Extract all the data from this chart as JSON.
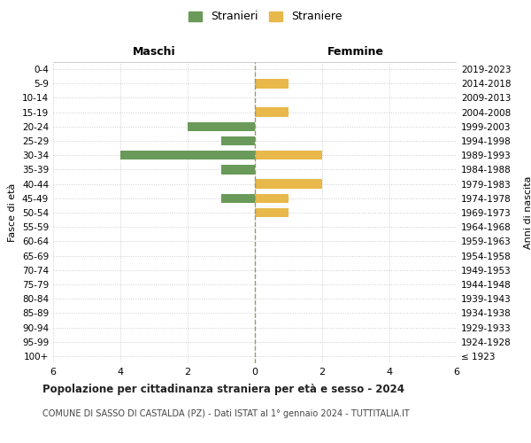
{
  "age_groups": [
    "100+",
    "95-99",
    "90-94",
    "85-89",
    "80-84",
    "75-79",
    "70-74",
    "65-69",
    "60-64",
    "55-59",
    "50-54",
    "45-49",
    "40-44",
    "35-39",
    "30-34",
    "25-29",
    "20-24",
    "15-19",
    "10-14",
    "5-9",
    "0-4"
  ],
  "birth_years": [
    "≤ 1923",
    "1924-1928",
    "1929-1933",
    "1934-1938",
    "1939-1943",
    "1944-1948",
    "1949-1953",
    "1954-1958",
    "1959-1963",
    "1964-1968",
    "1969-1973",
    "1974-1978",
    "1979-1983",
    "1984-1988",
    "1989-1993",
    "1994-1998",
    "1999-2003",
    "2004-2008",
    "2009-2013",
    "2014-2018",
    "2019-2023"
  ],
  "stranieri_maschi": [
    0,
    0,
    0,
    0,
    0,
    0,
    0,
    0,
    0,
    0,
    0,
    1,
    0,
    1,
    4,
    1,
    2,
    0,
    0,
    0,
    0
  ],
  "straniere_femmine": [
    0,
    0,
    0,
    0,
    0,
    0,
    0,
    0,
    0,
    0,
    1,
    1,
    2,
    0,
    2,
    0,
    0,
    1,
    0,
    1,
    0
  ],
  "color_maschi": "#6a9a5a",
  "color_femmine": "#e8b84b",
  "xlim": 6,
  "title": "Popolazione per cittadinanza straniera per età e sesso - 2024",
  "subtitle": "COMUNE DI SASSO DI CASTALDA (PZ) - Dati ISTAT al 1° gennaio 2024 - TUTTITALIA.IT",
  "ylabel_left": "Fasce di età",
  "ylabel_right": "Anni di nascita",
  "label_maschi": "Stranieri",
  "label_femmine": "Straniere",
  "header_maschi": "Maschi",
  "header_femmine": "Femmine",
  "bg_color": "#ffffff"
}
